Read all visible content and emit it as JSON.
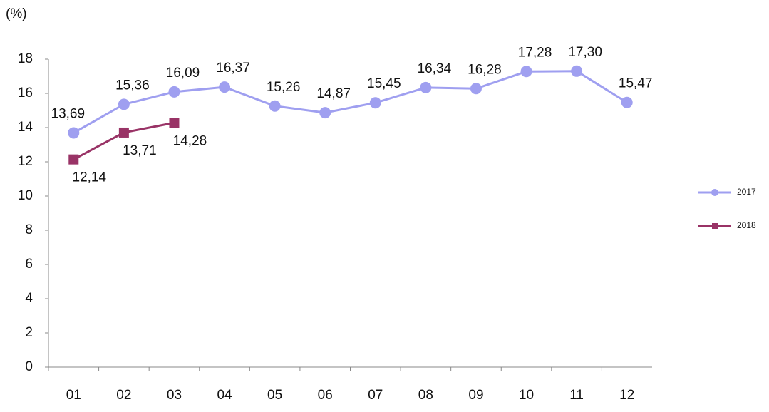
{
  "chart_data": {
    "type": "line",
    "y_label": "(%)",
    "categories": [
      "01",
      "02",
      "03",
      "04",
      "05",
      "06",
      "07",
      "08",
      "09",
      "10",
      "11",
      "12"
    ],
    "series": [
      {
        "name": "2017",
        "color": "#9f9ff0",
        "marker": "circle",
        "values": [
          13.69,
          15.36,
          16.09,
          16.37,
          15.26,
          14.87,
          15.45,
          16.34,
          16.28,
          17.28,
          17.3,
          15.47
        ],
        "value_labels": [
          "13,69",
          "15,36",
          "16,09",
          "16,37",
          "15,26",
          "14,87",
          "15,45",
          "16,34",
          "16,28",
          "17,28",
          "17,30",
          "15,47"
        ]
      },
      {
        "name": "2018",
        "color": "#993366",
        "marker": "square",
        "values": [
          12.14,
          13.71,
          14.28,
          null,
          null,
          null,
          null,
          null,
          null,
          null,
          null,
          null
        ],
        "value_labels": [
          "12,14",
          "13,71",
          "14,28",
          null,
          null,
          null,
          null,
          null,
          null,
          null,
          null,
          null
        ]
      }
    ],
    "ylim": [
      0,
      18
    ],
    "yticks": [
      0,
      2,
      4,
      6,
      8,
      10,
      12,
      14,
      16,
      18
    ],
    "grid": false,
    "legend": "right"
  }
}
